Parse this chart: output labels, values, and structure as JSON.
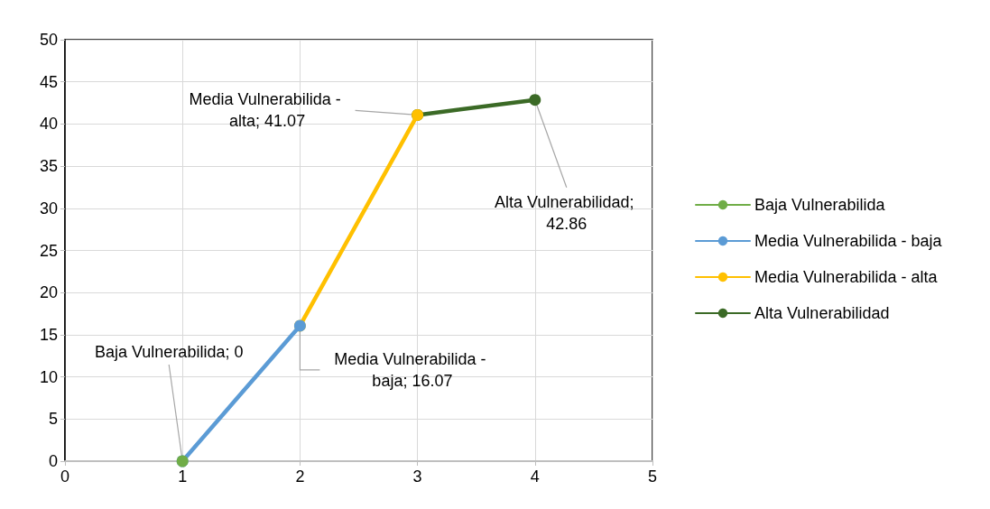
{
  "chart_data": {
    "type": "line",
    "xlim": [
      0,
      5
    ],
    "xticks": [
      0,
      1,
      2,
      3,
      4,
      5
    ],
    "ylim": [
      0,
      50
    ],
    "yticks": [
      0,
      5,
      10,
      15,
      20,
      25,
      30,
      35,
      40,
      45,
      50
    ],
    "grid": true,
    "legend": "right",
    "marker": "circle",
    "line_style": "solid",
    "series": [
      {
        "name": "Baja Vulnerabilida",
        "color": "#70ad47",
        "x": [
          1
        ],
        "values": [
          0
        ]
      },
      {
        "name": "Media Vulnerabilida - baja",
        "color": "#5b9bd5",
        "x": [
          1,
          2
        ],
        "values": [
          0,
          16.07
        ]
      },
      {
        "name": "Media Vulnerabilida - alta",
        "color": "#ffc000",
        "x": [
          2,
          3
        ],
        "values": [
          16.07,
          41.07
        ]
      },
      {
        "name": "Alta Vulnerabilidad",
        "color": "#3b6a26",
        "x": [
          3,
          4
        ],
        "values": [
          41.07,
          42.86
        ]
      }
    ],
    "annotations": [
      {
        "text": "Baja Vulnerabilida; 0",
        "x": 1,
        "y": 0
      },
      {
        "text": "Media Vulnerabilida - baja; 16.07",
        "x": 2,
        "y": 16.07
      },
      {
        "text": "Media Vulnerabilida - alta; 41.07",
        "x": 3,
        "y": 41.07
      },
      {
        "text": "Alta Vulnerabilidad; 42.86",
        "x": 4,
        "y": 42.86
      }
    ]
  }
}
